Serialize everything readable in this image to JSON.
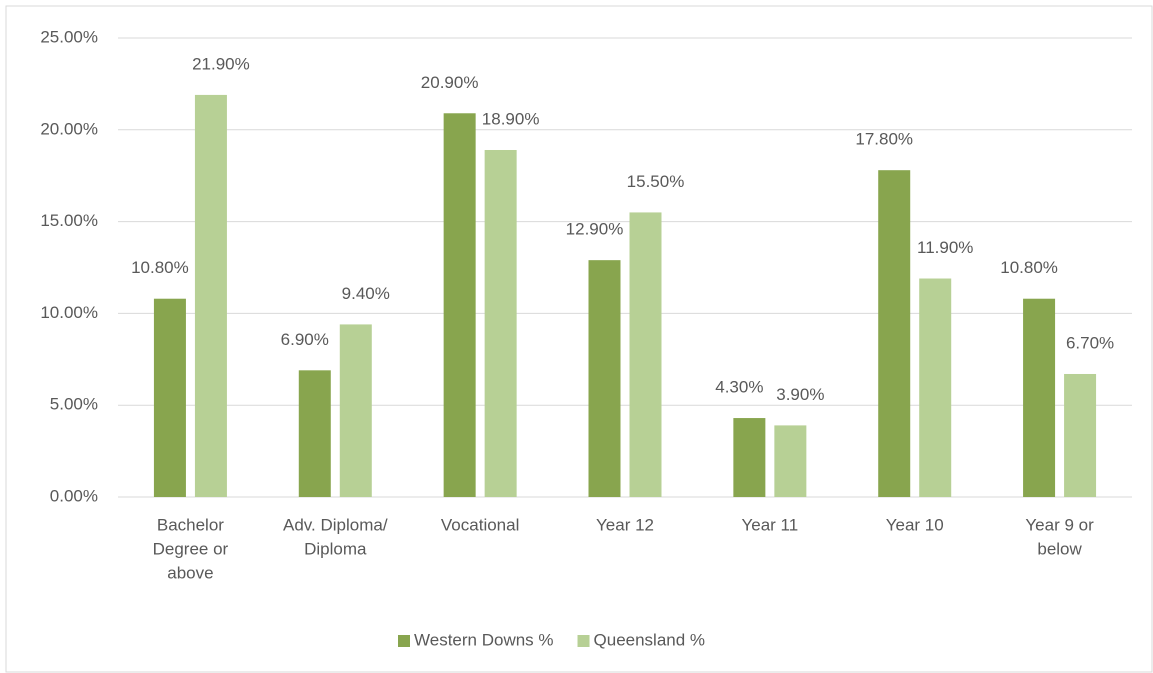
{
  "chart_data": {
    "type": "bar",
    "categories": [
      [
        "Bachelor",
        "Degree or",
        "above"
      ],
      [
        "Adv. Diploma/",
        "Diploma"
      ],
      [
        "Vocational"
      ],
      [
        "Year 12"
      ],
      [
        "Year 11"
      ],
      [
        "Year 10"
      ],
      [
        "Year 9 or",
        "below"
      ]
    ],
    "series": [
      {
        "name": "Western Downs %",
        "color": "#88a54e",
        "values": [
          10.8,
          6.9,
          20.9,
          12.9,
          4.3,
          17.8,
          10.8
        ],
        "value_labels": [
          "10.80%",
          "6.90%",
          "20.90%",
          "12.90%",
          "4.30%",
          "17.80%",
          "10.80%"
        ]
      },
      {
        "name": "Queensland %",
        "color": "#b7d095",
        "values": [
          21.9,
          9.4,
          18.9,
          15.5,
          3.9,
          11.9,
          6.7
        ],
        "value_labels": [
          "21.90%",
          "9.40%",
          "18.90%",
          "15.50%",
          "3.90%",
          "11.90%",
          "6.70%"
        ]
      }
    ],
    "ylim": [
      0,
      25
    ],
    "yticks": [
      {
        "value": 0,
        "label": "0.00%"
      },
      {
        "value": 5,
        "label": "5.00%"
      },
      {
        "value": 10,
        "label": "10.00%"
      },
      {
        "value": 15,
        "label": "15.00%"
      },
      {
        "value": 20,
        "label": "20.00%"
      },
      {
        "value": 25,
        "label": "25.00%"
      }
    ],
    "grid": true,
    "legend": "bottom"
  }
}
